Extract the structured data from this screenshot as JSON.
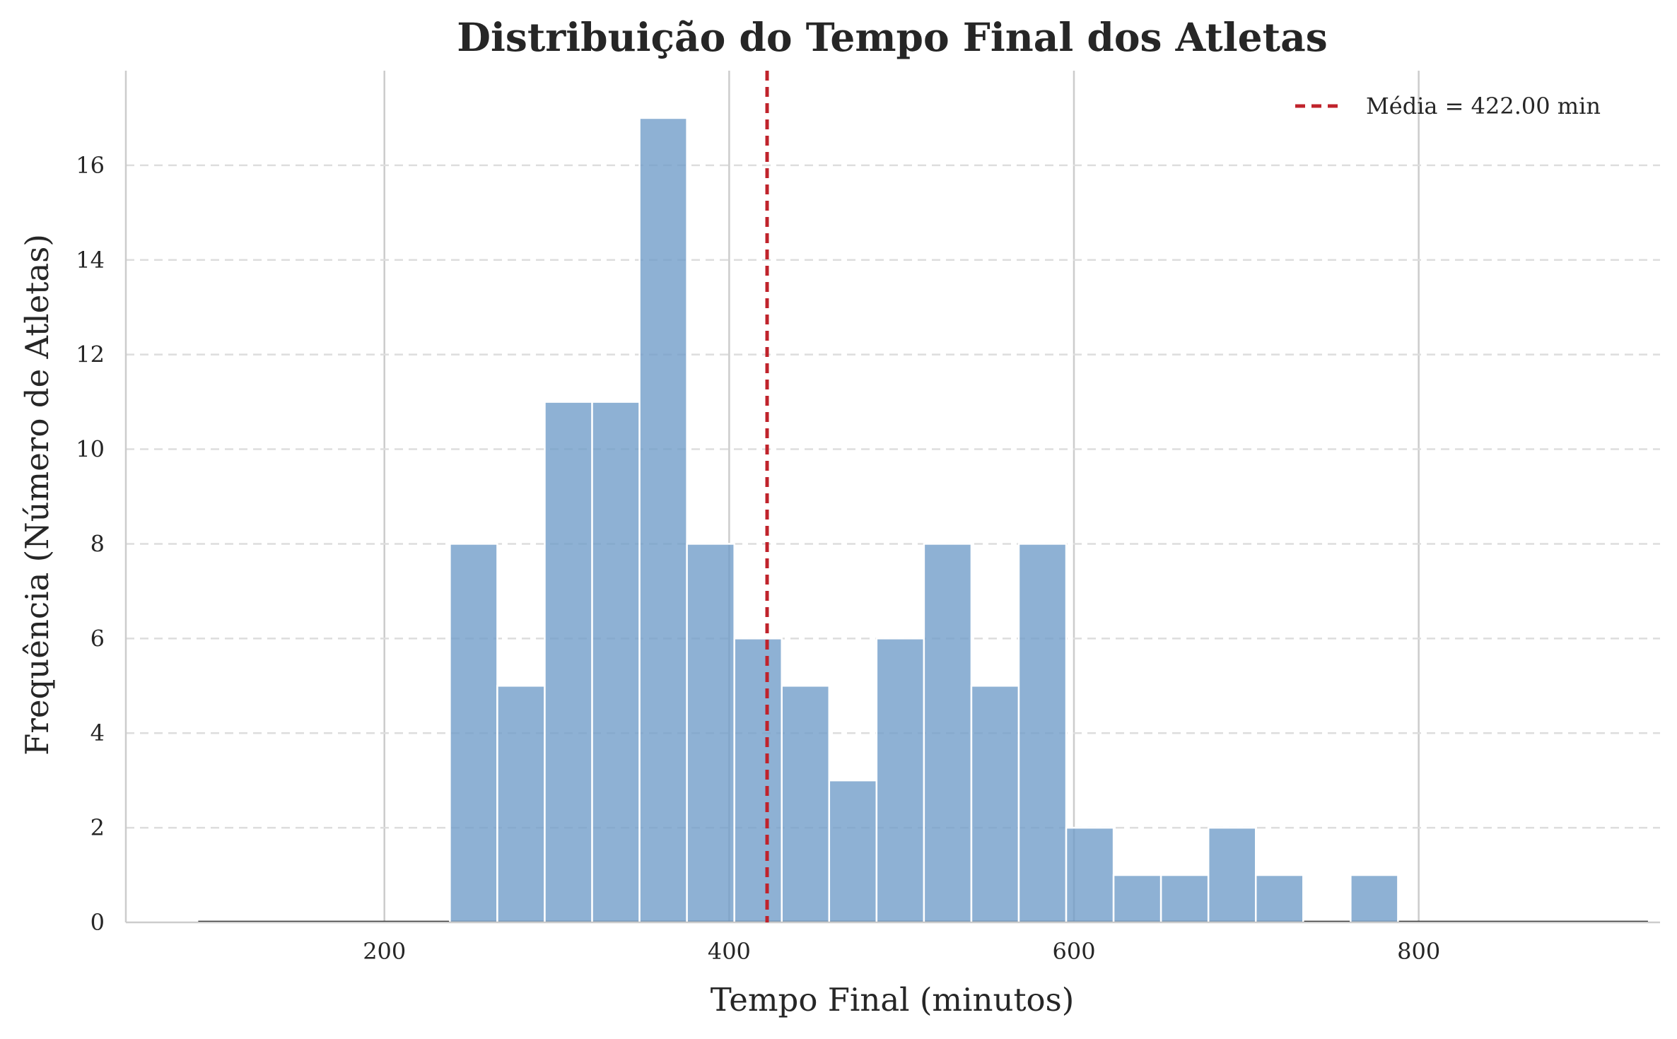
{
  "chart_data": {
    "type": "bar",
    "title": "Distribuição do Tempo Final dos Atletas",
    "xlabel": "Tempo Final (minutos)",
    "ylabel": "Frequência (Número de Atletas)",
    "xlim": [
      50,
      940
    ],
    "ylim": [
      0,
      18
    ],
    "xticks": [
      200,
      400,
      600,
      800
    ],
    "yticks": [
      0,
      2,
      4,
      6,
      8,
      10,
      12,
      14,
      16
    ],
    "bin_edges": [
      238,
      265.5,
      293,
      320.5,
      348,
      375.5,
      403,
      430.5,
      458,
      485.5,
      513,
      540.5,
      568,
      595.5,
      623,
      650.5,
      678,
      705.5,
      733,
      760.5,
      788
    ],
    "values": [
      8,
      5,
      11,
      11,
      17,
      8,
      6,
      5,
      3,
      6,
      8,
      5,
      8,
      2,
      1,
      1,
      2,
      1,
      0,
      1
    ],
    "baseline_range": [
      92,
      933
    ],
    "mean_line": {
      "x": 422.0,
      "label": "Média = 422.00 min",
      "color": "#c0232b",
      "style": "dashed"
    },
    "bar_color": "#6e9bc8",
    "grid": {
      "x": "solid",
      "y": "dashed"
    },
    "legend_position": "top-right"
  }
}
